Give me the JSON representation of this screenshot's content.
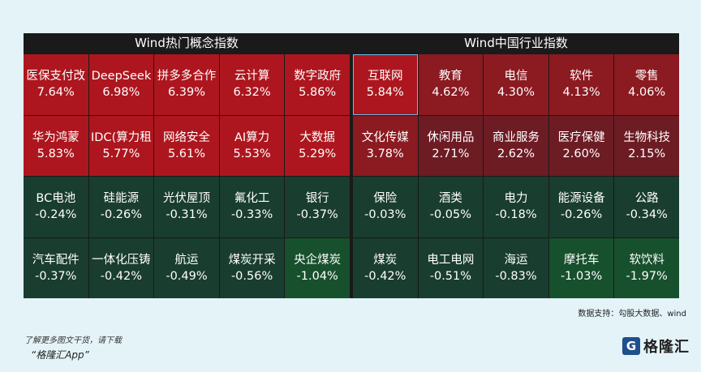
{
  "chart_data": [
    {
      "type": "heatmap",
      "title": "Wind热门概念指数",
      "cells": [
        {
          "name": "医保支付改",
          "value": "7.64%",
          "color": "#ad161e"
        },
        {
          "name": "DeepSeek",
          "value": "6.98%",
          "color": "#ad161e"
        },
        {
          "name": "拼多多合作",
          "value": "6.39%",
          "color": "#ad161e"
        },
        {
          "name": "云计算",
          "value": "6.32%",
          "color": "#ad161e"
        },
        {
          "name": "数字政府",
          "value": "5.86%",
          "color": "#ad161e"
        },
        {
          "name": "华为鸿蒙",
          "value": "5.83%",
          "color": "#ad161e"
        },
        {
          "name": "IDC(算力租",
          "value": "5.77%",
          "color": "#ad161e"
        },
        {
          "name": "网络安全",
          "value": "5.61%",
          "color": "#ad161e"
        },
        {
          "name": "AI算力",
          "value": "5.53%",
          "color": "#ad161e"
        },
        {
          "name": "大数据",
          "value": "5.29%",
          "color": "#ad161e"
        },
        {
          "name": "BC电池",
          "value": "-0.24%",
          "color": "#193d2e"
        },
        {
          "name": "硅能源",
          "value": "-0.26%",
          "color": "#193d2e"
        },
        {
          "name": "光伏屋顶",
          "value": "-0.31%",
          "color": "#193d2e"
        },
        {
          "name": "氟化工",
          "value": "-0.33%",
          "color": "#193d2e"
        },
        {
          "name": "银行",
          "value": "-0.37%",
          "color": "#193d2e"
        },
        {
          "name": "汽车配件",
          "value": "-0.37%",
          "color": "#193d2e"
        },
        {
          "name": "一体化压铸",
          "value": "-0.42%",
          "color": "#193d2e"
        },
        {
          "name": "航运",
          "value": "-0.49%",
          "color": "#193d2e"
        },
        {
          "name": "煤炭开采",
          "value": "-0.56%",
          "color": "#193d2e"
        },
        {
          "name": "央企煤炭",
          "value": "-1.04%",
          "color": "#17502d"
        }
      ]
    },
    {
      "type": "heatmap",
      "title": "Wind中国行业指数",
      "cells": [
        {
          "name": "互联网",
          "value": "5.84%",
          "color": "#ad161e",
          "highlight": true
        },
        {
          "name": "教育",
          "value": "4.62%",
          "color": "#8b1a21"
        },
        {
          "name": "电信",
          "value": "4.30%",
          "color": "#8b1a21"
        },
        {
          "name": "软件",
          "value": "4.13%",
          "color": "#8b1a21"
        },
        {
          "name": "零售",
          "value": "4.06%",
          "color": "#8b1a21"
        },
        {
          "name": "文化传媒",
          "value": "3.78%",
          "color": "#8b1a21"
        },
        {
          "name": "休闲用品",
          "value": "2.71%",
          "color": "#6d1c24"
        },
        {
          "name": "商业服务",
          "value": "2.62%",
          "color": "#6d1c24"
        },
        {
          "name": "医疗保健",
          "value": "2.60%",
          "color": "#6d1c24"
        },
        {
          "name": "生物科技",
          "value": "2.15%",
          "color": "#6d1c24"
        },
        {
          "name": "保险",
          "value": "-0.03%",
          "color": "#193d2e"
        },
        {
          "name": "酒类",
          "value": "-0.05%",
          "color": "#193d2e"
        },
        {
          "name": "电力",
          "value": "-0.18%",
          "color": "#193d2e"
        },
        {
          "name": "能源设备",
          "value": "-0.26%",
          "color": "#193d2e"
        },
        {
          "name": "公路",
          "value": "-0.34%",
          "color": "#193d2e"
        },
        {
          "name": "煤炭",
          "value": "-0.42%",
          "color": "#193d2e"
        },
        {
          "name": "电工电网",
          "value": "-0.51%",
          "color": "#193d2e"
        },
        {
          "name": "海运",
          "value": "-0.83%",
          "color": "#193d2e"
        },
        {
          "name": "摩托车",
          "value": "-1.03%",
          "color": "#17502d"
        },
        {
          "name": "软饮料",
          "value": "-1.97%",
          "color": "#17502d"
        }
      ]
    }
  ],
  "footer": {
    "source": "数据支持：勾股大数据、wind",
    "note": "了解更多图文干货，请下载",
    "app": "“格隆汇App”",
    "logo_text": "格隆汇",
    "logo_mark": "G"
  }
}
